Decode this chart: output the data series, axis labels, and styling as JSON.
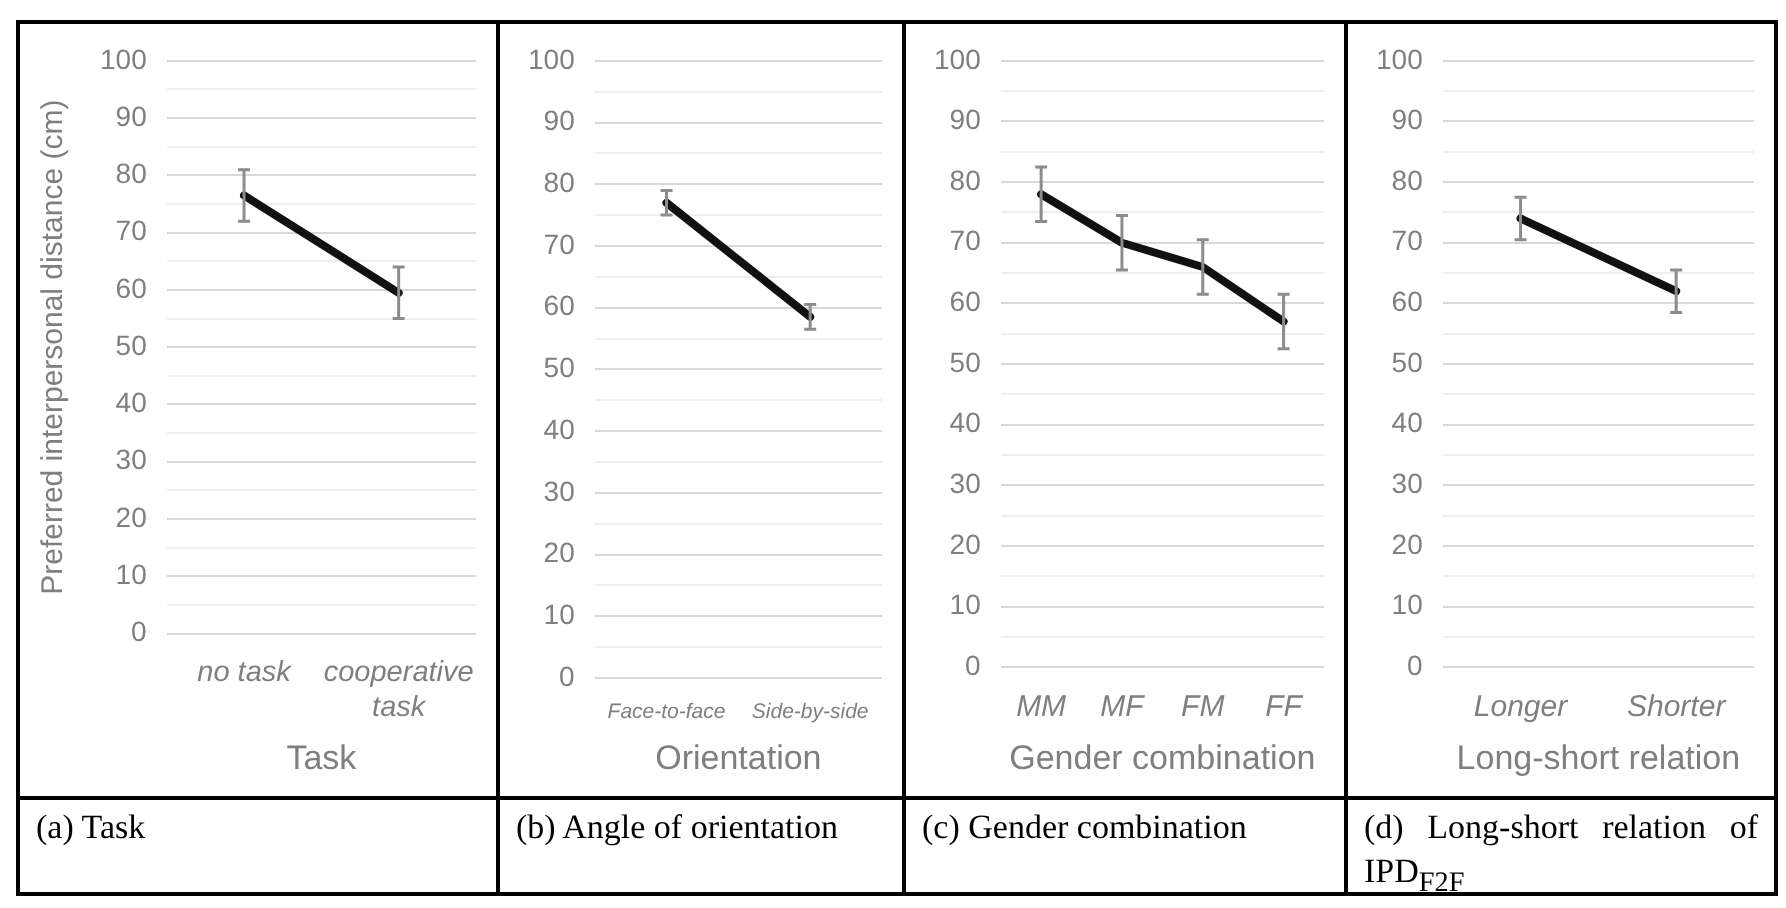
{
  "chart_data": [
    {
      "type": "line",
      "ylabel": "Preferred interpersonal distance (cm)",
      "xlabel": "Task",
      "categories": [
        "no task",
        "cooperative task"
      ],
      "values": [
        76.5,
        59.5
      ],
      "errors": [
        4.5,
        4.5
      ],
      "color": "#111111",
      "marker": "none",
      "ylim": [
        0,
        100
      ],
      "yticks": [
        0,
        {
          "value": 5,
          "label": null
        },
        10,
        {
          "value": 15,
          "label": null
        },
        20,
        {
          "value": 25,
          "label": null
        },
        30,
        {
          "value": 35,
          "label": null
        },
        40,
        {
          "value": 45,
          "label": null
        },
        50,
        {
          "value": 55,
          "label": null
        },
        60,
        {
          "value": 65,
          "label": null
        },
        70,
        {
          "value": 75,
          "label": null
        },
        80,
        {
          "value": 85,
          "label": null
        },
        90,
        {
          "value": 95,
          "label": null
        },
        100
      ],
      "grid": "y",
      "annotations": [
        "(a)  Task"
      ]
    },
    {
      "type": "line",
      "xlabel": "Orientation",
      "categories": [
        "Face-to-face",
        "Side-by-side"
      ],
      "values": [
        77,
        58.5
      ],
      "errors": [
        2,
        2
      ],
      "color": "#111111",
      "marker": "none",
      "ylim": [
        0,
        100
      ],
      "yticks": [
        0,
        {
          "value": 5,
          "label": null
        },
        10,
        {
          "value": 15,
          "label": null
        },
        20,
        {
          "value": 25,
          "label": null
        },
        30,
        {
          "value": 35,
          "label": null
        },
        40,
        {
          "value": 45,
          "label": null
        },
        50,
        {
          "value": 55,
          "label": null
        },
        60,
        {
          "value": 65,
          "label": null
        },
        70,
        {
          "value": 75,
          "label": null
        },
        80,
        {
          "value": 85,
          "label": null
        },
        90,
        {
          "value": 95,
          "label": null
        },
        100
      ],
      "grid": "y",
      "annotations": [
        "(b)  Angle of orientation"
      ]
    },
    {
      "type": "line",
      "xlabel": "Gender combination",
      "categories": [
        "MM",
        "MF",
        "FM",
        "FF"
      ],
      "values": [
        78,
        70,
        66,
        57
      ],
      "errors": [
        4.5,
        4.5,
        4.5,
        4.5
      ],
      "color": "#111111",
      "marker": "none",
      "ylim": [
        0,
        100
      ],
      "yticks": [
        0,
        {
          "value": 5,
          "label": null
        },
        10,
        {
          "value": 15,
          "label": null
        },
        20,
        {
          "value": 25,
          "label": null
        },
        30,
        {
          "value": 35,
          "label": null
        },
        40,
        {
          "value": 45,
          "label": null
        },
        50,
        {
          "value": 55,
          "label": null
        },
        60,
        {
          "value": 65,
          "label": null
        },
        70,
        {
          "value": 75,
          "label": null
        },
        80,
        {
          "value": 85,
          "label": null
        },
        90,
        {
          "value": 95,
          "label": null
        },
        100
      ],
      "grid": "y",
      "annotations": [
        "(c)  Gender combination"
      ]
    },
    {
      "type": "line",
      "xlabel": "Long-short relation",
      "categories": [
        "Longer",
        "Shorter"
      ],
      "values": [
        74,
        62
      ],
      "errors": [
        3.5,
        3.5
      ],
      "color": "#111111",
      "marker": "none",
      "ylim": [
        0,
        100
      ],
      "yticks": [
        0,
        {
          "value": 5,
          "label": null
        },
        10,
        {
          "value": 15,
          "label": null
        },
        20,
        {
          "value": 25,
          "label": null
        },
        30,
        {
          "value": 35,
          "label": null
        },
        40,
        {
          "value": 45,
          "label": null
        },
        50,
        {
          "value": 55,
          "label": null
        },
        60,
        {
          "value": 65,
          "label": null
        },
        70,
        {
          "value": 75,
          "label": null
        },
        80,
        {
          "value": 85,
          "label": null
        },
        90,
        {
          "value": 95,
          "label": null
        },
        100
      ],
      "grid": "y",
      "annotations": [
        "(d)  Long-short relation of IPD$_{F2F}$"
      ]
    }
  ]
}
